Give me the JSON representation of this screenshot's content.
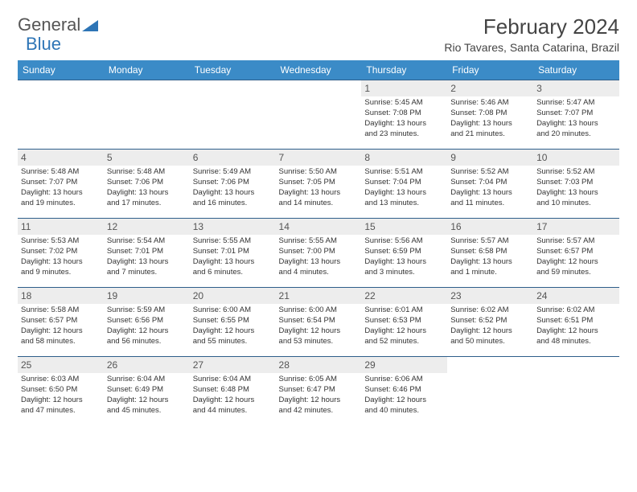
{
  "logo": {
    "text_a": "General",
    "text_b": "Blue",
    "tri_color": "#2e75b6"
  },
  "title": "February 2024",
  "location": "Rio Tavares, Santa Catarina, Brazil",
  "header_bg": "#3b8bc7",
  "row_border": "#2e5e8a",
  "daynum_bg": "#ededed",
  "weekdays": [
    "Sunday",
    "Monday",
    "Tuesday",
    "Wednesday",
    "Thursday",
    "Friday",
    "Saturday"
  ],
  "weeks": [
    [
      null,
      null,
      null,
      null,
      {
        "n": "1",
        "sr": "5:45 AM",
        "ss": "7:08 PM",
        "dl1": "Daylight: 13 hours",
        "dl2": "and 23 minutes."
      },
      {
        "n": "2",
        "sr": "5:46 AM",
        "ss": "7:08 PM",
        "dl1": "Daylight: 13 hours",
        "dl2": "and 21 minutes."
      },
      {
        "n": "3",
        "sr": "5:47 AM",
        "ss": "7:07 PM",
        "dl1": "Daylight: 13 hours",
        "dl2": "and 20 minutes."
      }
    ],
    [
      {
        "n": "4",
        "sr": "5:48 AM",
        "ss": "7:07 PM",
        "dl1": "Daylight: 13 hours",
        "dl2": "and 19 minutes."
      },
      {
        "n": "5",
        "sr": "5:48 AM",
        "ss": "7:06 PM",
        "dl1": "Daylight: 13 hours",
        "dl2": "and 17 minutes."
      },
      {
        "n": "6",
        "sr": "5:49 AM",
        "ss": "7:06 PM",
        "dl1": "Daylight: 13 hours",
        "dl2": "and 16 minutes."
      },
      {
        "n": "7",
        "sr": "5:50 AM",
        "ss": "7:05 PM",
        "dl1": "Daylight: 13 hours",
        "dl2": "and 14 minutes."
      },
      {
        "n": "8",
        "sr": "5:51 AM",
        "ss": "7:04 PM",
        "dl1": "Daylight: 13 hours",
        "dl2": "and 13 minutes."
      },
      {
        "n": "9",
        "sr": "5:52 AM",
        "ss": "7:04 PM",
        "dl1": "Daylight: 13 hours",
        "dl2": "and 11 minutes."
      },
      {
        "n": "10",
        "sr": "5:52 AM",
        "ss": "7:03 PM",
        "dl1": "Daylight: 13 hours",
        "dl2": "and 10 minutes."
      }
    ],
    [
      {
        "n": "11",
        "sr": "5:53 AM",
        "ss": "7:02 PM",
        "dl1": "Daylight: 13 hours",
        "dl2": "and 9 minutes."
      },
      {
        "n": "12",
        "sr": "5:54 AM",
        "ss": "7:01 PM",
        "dl1": "Daylight: 13 hours",
        "dl2": "and 7 minutes."
      },
      {
        "n": "13",
        "sr": "5:55 AM",
        "ss": "7:01 PM",
        "dl1": "Daylight: 13 hours",
        "dl2": "and 6 minutes."
      },
      {
        "n": "14",
        "sr": "5:55 AM",
        "ss": "7:00 PM",
        "dl1": "Daylight: 13 hours",
        "dl2": "and 4 minutes."
      },
      {
        "n": "15",
        "sr": "5:56 AM",
        "ss": "6:59 PM",
        "dl1": "Daylight: 13 hours",
        "dl2": "and 3 minutes."
      },
      {
        "n": "16",
        "sr": "5:57 AM",
        "ss": "6:58 PM",
        "dl1": "Daylight: 13 hours",
        "dl2": "and 1 minute."
      },
      {
        "n": "17",
        "sr": "5:57 AM",
        "ss": "6:57 PM",
        "dl1": "Daylight: 12 hours",
        "dl2": "and 59 minutes."
      }
    ],
    [
      {
        "n": "18",
        "sr": "5:58 AM",
        "ss": "6:57 PM",
        "dl1": "Daylight: 12 hours",
        "dl2": "and 58 minutes."
      },
      {
        "n": "19",
        "sr": "5:59 AM",
        "ss": "6:56 PM",
        "dl1": "Daylight: 12 hours",
        "dl2": "and 56 minutes."
      },
      {
        "n": "20",
        "sr": "6:00 AM",
        "ss": "6:55 PM",
        "dl1": "Daylight: 12 hours",
        "dl2": "and 55 minutes."
      },
      {
        "n": "21",
        "sr": "6:00 AM",
        "ss": "6:54 PM",
        "dl1": "Daylight: 12 hours",
        "dl2": "and 53 minutes."
      },
      {
        "n": "22",
        "sr": "6:01 AM",
        "ss": "6:53 PM",
        "dl1": "Daylight: 12 hours",
        "dl2": "and 52 minutes."
      },
      {
        "n": "23",
        "sr": "6:02 AM",
        "ss": "6:52 PM",
        "dl1": "Daylight: 12 hours",
        "dl2": "and 50 minutes."
      },
      {
        "n": "24",
        "sr": "6:02 AM",
        "ss": "6:51 PM",
        "dl1": "Daylight: 12 hours",
        "dl2": "and 48 minutes."
      }
    ],
    [
      {
        "n": "25",
        "sr": "6:03 AM",
        "ss": "6:50 PM",
        "dl1": "Daylight: 12 hours",
        "dl2": "and 47 minutes."
      },
      {
        "n": "26",
        "sr": "6:04 AM",
        "ss": "6:49 PM",
        "dl1": "Daylight: 12 hours",
        "dl2": "and 45 minutes."
      },
      {
        "n": "27",
        "sr": "6:04 AM",
        "ss": "6:48 PM",
        "dl1": "Daylight: 12 hours",
        "dl2": "and 44 minutes."
      },
      {
        "n": "28",
        "sr": "6:05 AM",
        "ss": "6:47 PM",
        "dl1": "Daylight: 12 hours",
        "dl2": "and 42 minutes."
      },
      {
        "n": "29",
        "sr": "6:06 AM",
        "ss": "6:46 PM",
        "dl1": "Daylight: 12 hours",
        "dl2": "and 40 minutes."
      },
      null,
      null
    ]
  ],
  "labels": {
    "sunrise": "Sunrise: ",
    "sunset": "Sunset: "
  }
}
